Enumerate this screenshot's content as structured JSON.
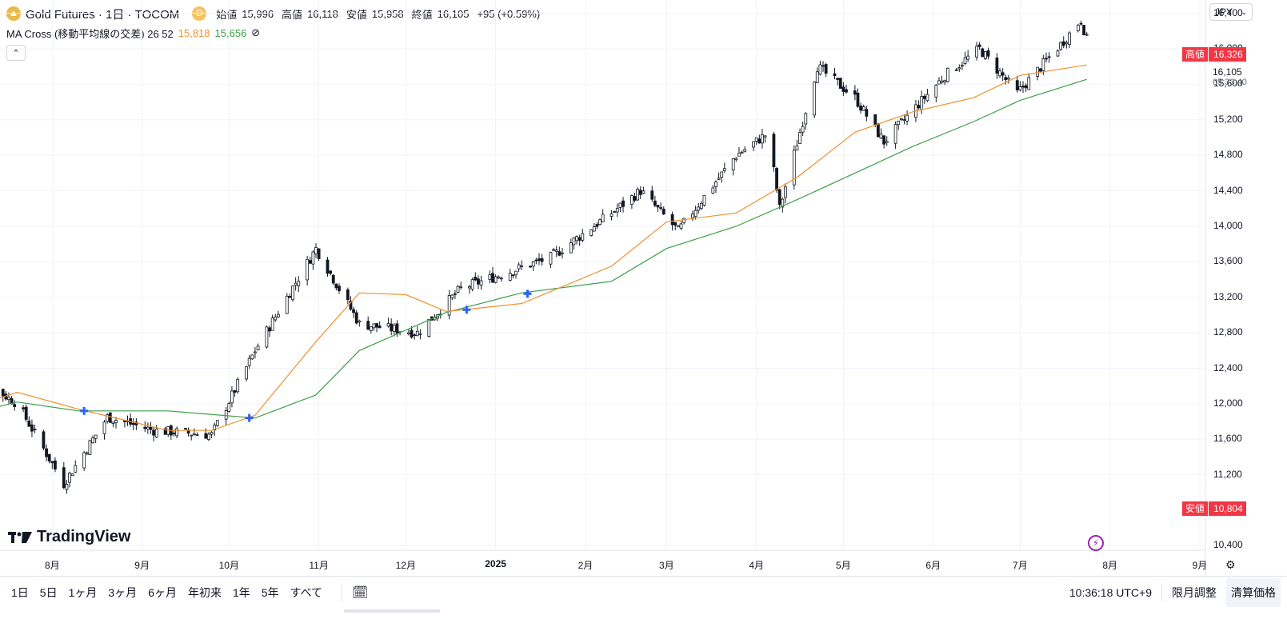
{
  "header": {
    "symbol_title": "Gold Futures · 1日 · TOCOM",
    "badge": "D",
    "ohlc": [
      {
        "label": "始値",
        "value": "15,996"
      },
      {
        "label": "高値",
        "value": "16,118"
      },
      {
        "label": "安値",
        "value": "15,958"
      },
      {
        "label": "終値",
        "value": "16,105"
      }
    ],
    "change": "+95 (+0.59%)"
  },
  "indicator": {
    "name": "MA Cross (移動平均線の交差) 26 52",
    "fast_value": "15,818",
    "slow_value": "15,656",
    "hide_icon": "⊘"
  },
  "currency": "JPY",
  "price_axis": {
    "ticks": [
      "16,400",
      "16,000",
      "15,600",
      "15,200",
      "14,800",
      "14,400",
      "14,000",
      "13,600",
      "13,200",
      "12,800",
      "12,400",
      "12,000",
      "11,600",
      "11,200",
      "10,400"
    ],
    "high_tag": {
      "label": "高値",
      "value": "16,326"
    },
    "low_tag": {
      "label": "安値",
      "value": "10,804"
    },
    "last_price": "16,105",
    "countdown": "05:33:40"
  },
  "time_axis": [
    "8月",
    "9月",
    "10月",
    "11月",
    "12月",
    "2025",
    "2月",
    "3月",
    "4月",
    "5月",
    "6月",
    "7月",
    "8月",
    "9月"
  ],
  "bottom_bar": {
    "ranges": [
      "1日",
      "5日",
      "1ヶ月",
      "3ヶ月",
      "6ヶ月",
      "年初来",
      "1年",
      "5年",
      "すべて"
    ],
    "clock": "10:36:18 UTC+9",
    "contract_adjust": "限月調整",
    "settlement": "清算価格"
  },
  "branding": "TradingView",
  "colors": {
    "ma_fast": "#f0902d",
    "ma_slow": "#3c9f48",
    "cross_marker": "#2962ff",
    "tag_red": "#f23645",
    "candle": "#131722"
  },
  "chart_data": {
    "type": "candlestick",
    "y_range": [
      10350,
      16550
    ],
    "x_range": [
      "2024-07-01",
      "2025-09-01"
    ],
    "grid": true,
    "price_scale_side": "right",
    "closes_approx": [
      {
        "x": "2024-07-01",
        "y": 12400
      },
      {
        "x": "2024-07-20",
        "y": 12000
      },
      {
        "x": "2024-08-05",
        "y": 11100
      },
      {
        "x": "2024-08-20",
        "y": 11850
      },
      {
        "x": "2024-09-05",
        "y": 11700
      },
      {
        "x": "2024-09-25",
        "y": 11650
      },
      {
        "x": "2024-10-10",
        "y": 12600
      },
      {
        "x": "2024-10-31",
        "y": 13750
      },
      {
        "x": "2024-11-15",
        "y": 12900
      },
      {
        "x": "2024-12-05",
        "y": 12800
      },
      {
        "x": "2024-12-20",
        "y": 13300
      },
      {
        "x": "2025-01-20",
        "y": 13650
      },
      {
        "x": "2025-02-10",
        "y": 14150
      },
      {
        "x": "2025-02-20",
        "y": 14400
      },
      {
        "x": "2025-03-05",
        "y": 13950
      },
      {
        "x": "2025-03-25",
        "y": 14800
      },
      {
        "x": "2025-04-05",
        "y": 15050
      },
      {
        "x": "2025-04-09",
        "y": 14200
      },
      {
        "x": "2025-04-22",
        "y": 15800
      },
      {
        "x": "2025-05-05",
        "y": 15450
      },
      {
        "x": "2025-05-15",
        "y": 14950
      },
      {
        "x": "2025-06-05",
        "y": 15700
      },
      {
        "x": "2025-06-17",
        "y": 16000
      },
      {
        "x": "2025-06-30",
        "y": 15500
      },
      {
        "x": "2025-07-15",
        "y": 16050
      },
      {
        "x": "2025-07-22",
        "y": 16326
      },
      {
        "x": "2025-07-24",
        "y": 16105
      }
    ],
    "ma_fast": [
      {
        "x": "2024-07-01",
        "y": 11930
      },
      {
        "x": "2024-07-20",
        "y": 12130
      },
      {
        "x": "2024-08-10",
        "y": 11940
      },
      {
        "x": "2024-09-10",
        "y": 11700
      },
      {
        "x": "2024-09-25",
        "y": 11700
      },
      {
        "x": "2024-10-10",
        "y": 11870
      },
      {
        "x": "2024-10-31",
        "y": 12700
      },
      {
        "x": "2024-11-15",
        "y": 13250
      },
      {
        "x": "2024-12-01",
        "y": 13230
      },
      {
        "x": "2024-12-15",
        "y": 13040
      },
      {
        "x": "2025-01-10",
        "y": 13130
      },
      {
        "x": "2025-02-10",
        "y": 13550
      },
      {
        "x": "2025-03-01",
        "y": 14050
      },
      {
        "x": "2025-03-25",
        "y": 14150
      },
      {
        "x": "2025-04-15",
        "y": 14550
      },
      {
        "x": "2025-05-05",
        "y": 15060
      },
      {
        "x": "2025-05-25",
        "y": 15290
      },
      {
        "x": "2025-06-15",
        "y": 15450
      },
      {
        "x": "2025-07-01",
        "y": 15700
      },
      {
        "x": "2025-07-24",
        "y": 15818
      }
    ],
    "ma_slow": [
      {
        "x": "2024-07-01",
        "y": 11870
      },
      {
        "x": "2024-07-20",
        "y": 12020
      },
      {
        "x": "2024-08-10",
        "y": 11920
      },
      {
        "x": "2024-09-10",
        "y": 11920
      },
      {
        "x": "2024-10-10",
        "y": 11840
      },
      {
        "x": "2024-10-31",
        "y": 12100
      },
      {
        "x": "2024-11-15",
        "y": 12600
      },
      {
        "x": "2024-12-15",
        "y": 13030
      },
      {
        "x": "2025-01-10",
        "y": 13250
      },
      {
        "x": "2025-02-10",
        "y": 13380
      },
      {
        "x": "2025-03-01",
        "y": 13750
      },
      {
        "x": "2025-03-25",
        "y": 14000
      },
      {
        "x": "2025-04-15",
        "y": 14300
      },
      {
        "x": "2025-05-05",
        "y": 14600
      },
      {
        "x": "2025-05-25",
        "y": 14900
      },
      {
        "x": "2025-06-15",
        "y": 15180
      },
      {
        "x": "2025-07-01",
        "y": 15420
      },
      {
        "x": "2025-07-24",
        "y": 15656
      }
    ],
    "crosses": [
      {
        "x": "2024-08-12",
        "y": 11920
      },
      {
        "x": "2024-10-08",
        "y": 11840
      },
      {
        "x": "2024-12-22",
        "y": 13060
      },
      {
        "x": "2025-01-12",
        "y": 13240
      }
    ]
  }
}
